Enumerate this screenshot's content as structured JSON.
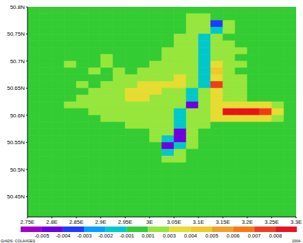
{
  "chart_data": {
    "type": "heatmap",
    "xlim": [
      2.75,
      3.3
    ],
    "xticks": [
      {
        "value": 2.75,
        "label": "2.75E"
      },
      {
        "value": 2.8,
        "label": "2.8E"
      },
      {
        "value": 2.85,
        "label": "2.85E"
      },
      {
        "value": 2.9,
        "label": "2.9E"
      },
      {
        "value": 2.95,
        "label": "2.95E"
      },
      {
        "value": 3,
        "label": "3E"
      },
      {
        "value": 3.05,
        "label": "3.05E"
      },
      {
        "value": 3.1,
        "label": "3.1E"
      },
      {
        "value": 3.15,
        "label": "3.15E"
      },
      {
        "value": 3.2,
        "label": "3.2E"
      },
      {
        "value": 3.25,
        "label": "3.25E"
      },
      {
        "value": 3.3,
        "label": "3.3E"
      }
    ],
    "ylim": [
      50.4125,
      50.8
    ],
    "yticks": [
      {
        "value": 50.45,
        "label": "50.45N"
      },
      {
        "value": 50.5,
        "label": "50.5N"
      },
      {
        "value": 50.55,
        "label": "50.55N"
      },
      {
        "value": 50.6,
        "label": "50.6N"
      },
      {
        "value": 50.65,
        "label": "50.65N"
      },
      {
        "value": 50.7,
        "label": "50.7N"
      },
      {
        "value": 50.75,
        "label": "50.75N"
      },
      {
        "value": 50.8,
        "label": "50.8N"
      }
    ],
    "x_edges": [
      2.75,
      2.775,
      2.8,
      2.825,
      2.85,
      2.875,
      2.9,
      2.925,
      2.95,
      2.975,
      3,
      3.025,
      3.05,
      3.075,
      3.1,
      3.125,
      3.15,
      3.175,
      3.2,
      3.225,
      3.25,
      3.275,
      3.3
    ],
    "y_edges": [
      50.8,
      50.7875,
      50.775,
      50.7625,
      50.75,
      50.7375,
      50.725,
      50.7125,
      50.7,
      50.6875,
      50.675,
      50.6625,
      50.65,
      50.6375,
      50.625,
      50.6125,
      50.6,
      50.5875,
      50.575,
      50.5625,
      50.55,
      50.5375,
      50.525,
      50.5125,
      50.5,
      50.4875,
      50.475,
      50.4625,
      50.45,
      50.4375,
      50.425,
      50.4125
    ],
    "z": [
      [
        0,
        0,
        0,
        0,
        0,
        0,
        0,
        0,
        0,
        0,
        0,
        0,
        0,
        0,
        0,
        0,
        0,
        0,
        0,
        0,
        0,
        0
      ],
      [
        0,
        0,
        0,
        0,
        0,
        0,
        0,
        0,
        0,
        0,
        0,
        0,
        0,
        0.002,
        0.002,
        0,
        0,
        0,
        0,
        0,
        0,
        0
      ],
      [
        0,
        0,
        0,
        0,
        0,
        0,
        0,
        0,
        0,
        0,
        0,
        0,
        0,
        0.002,
        0.002,
        -0.003,
        0.002,
        0,
        0,
        0,
        0,
        0
      ],
      [
        0,
        0,
        0,
        0,
        0,
        0,
        0,
        0,
        0,
        0,
        0,
        0,
        0,
        0.002,
        0.002,
        -0.0015,
        0.002,
        0,
        0,
        0,
        0,
        0
      ],
      [
        0,
        0,
        0,
        0,
        0,
        0,
        0,
        0,
        0,
        0,
        0,
        0,
        0.002,
        0.002,
        -0.0015,
        0.002,
        0,
        0,
        0,
        0,
        0,
        0
      ],
      [
        0,
        0,
        0,
        0,
        0,
        0,
        0,
        0,
        0,
        0,
        0,
        0,
        0.002,
        0.002,
        -0.0015,
        0.002,
        0.002,
        0,
        0,
        0,
        0,
        0
      ],
      [
        0,
        0,
        0,
        0,
        0,
        0,
        0,
        0,
        0,
        0,
        0,
        0.002,
        0.002,
        0.002,
        -0.0015,
        0.002,
        0.002,
        0.002,
        0,
        0,
        0,
        0
      ],
      [
        0,
        0,
        0,
        0,
        0,
        0,
        0.002,
        0,
        0,
        0,
        0,
        0.002,
        0.002,
        0.002,
        -0.0015,
        0.002,
        0.002,
        0,
        0,
        0,
        0,
        0
      ],
      [
        0,
        0,
        0,
        0.002,
        0,
        0,
        0.002,
        0,
        0,
        0,
        0.002,
        0.002,
        0.002,
        0.002,
        -0.0015,
        0.0035,
        0.002,
        0.002,
        0,
        0,
        0,
        0
      ],
      [
        0,
        0,
        0,
        0,
        0,
        0.002,
        0,
        0.002,
        0,
        0.002,
        0.002,
        0.002,
        0.002,
        0.002,
        -0.0015,
        0.0045,
        0.002,
        0,
        0,
        0,
        0,
        0
      ],
      [
        0,
        0,
        0,
        0,
        0,
        0,
        0,
        0.002,
        0.002,
        0.002,
        0.002,
        0.002,
        0.0035,
        0.002,
        -0.0015,
        0.0035,
        0.002,
        0.002,
        0,
        0,
        0,
        0
      ],
      [
        0,
        0,
        0,
        0,
        0.002,
        0,
        0.002,
        0.002,
        0.002,
        0.0035,
        0.0035,
        0.0035,
        0.0035,
        0.002,
        -0.0015,
        0.0075,
        0.002,
        0.002,
        0,
        0,
        0,
        0
      ],
      [
        0,
        0,
        0,
        0,
        0,
        0.002,
        0.002,
        0.002,
        0.0035,
        0.0035,
        0.0035,
        0.002,
        0.002,
        -0.0015,
        0.002,
        0.0035,
        0.002,
        0.002,
        0,
        0,
        0,
        0
      ],
      [
        0,
        0,
        0,
        0,
        0.002,
        0.002,
        0.002,
        0.002,
        0.0035,
        0.0035,
        0.002,
        0.002,
        0.002,
        -0.0015,
        0.002,
        0.0035,
        0.002,
        0.002,
        0,
        0,
        0,
        0
      ],
      [
        0,
        0,
        0,
        0.002,
        0.002,
        0.002,
        0.002,
        0.002,
        0.002,
        0.002,
        0.002,
        0.002,
        0.002,
        -0.0045,
        0.002,
        0.0035,
        0.0035,
        0.0035,
        0.0035,
        0.0035,
        0.002,
        0
      ],
      [
        0,
        0,
        0,
        0,
        0,
        0.002,
        0.002,
        0.002,
        0.002,
        0.002,
        0.002,
        0.002,
        -0.0015,
        0.002,
        0.002,
        0.0035,
        0.0085,
        0.0085,
        0.0085,
        0.0075,
        0.0035,
        0
      ],
      [
        0,
        0,
        0,
        0,
        0,
        0,
        0.002,
        0.002,
        0.002,
        0.002,
        0.002,
        0.002,
        -0.0015,
        0.002,
        0.002,
        0.0035,
        0.0035,
        0.0035,
        0.0035,
        0.0035,
        0.002,
        0
      ],
      [
        0,
        0,
        0,
        0,
        0,
        0,
        0,
        0,
        0.002,
        0.002,
        0.002,
        0.002,
        -0.0015,
        0.002,
        0.002,
        0,
        0,
        0,
        0,
        0,
        0,
        0
      ],
      [
        0,
        0,
        0,
        0,
        0,
        0,
        0,
        0,
        0,
        0,
        0.002,
        0.002,
        -0.004,
        0.002,
        0,
        0,
        0,
        0,
        0,
        0,
        0,
        0
      ],
      [
        0,
        0,
        0,
        0,
        0,
        0,
        0,
        0,
        0,
        0,
        0.002,
        -0.0015,
        -0.004,
        0.002,
        0,
        0,
        0,
        0,
        0,
        0,
        0,
        0
      ],
      [
        0,
        0,
        0,
        0,
        0,
        0,
        0,
        0,
        0,
        0,
        0,
        -0.0045,
        -0.0015,
        0.002,
        0,
        0,
        0,
        0,
        0,
        0,
        0,
        0
      ],
      [
        0,
        0,
        0,
        0,
        0,
        0,
        0,
        0,
        0,
        0,
        0,
        -0.0015,
        0.002,
        0,
        0,
        0,
        0,
        0,
        0,
        0,
        0,
        0
      ],
      [
        0,
        0,
        0,
        0,
        0,
        0,
        0,
        0,
        0,
        0,
        0,
        0.002,
        0.002,
        0,
        0,
        0,
        0,
        0,
        0,
        0,
        0,
        0
      ],
      [
        0,
        0,
        0,
        0,
        0,
        0,
        0,
        0,
        0,
        0,
        0,
        0,
        0,
        0,
        0,
        0,
        0,
        0,
        0,
        0,
        0,
        0
      ],
      [
        0,
        0,
        0,
        0,
        0,
        0,
        0,
        0,
        0,
        0,
        0,
        0,
        0,
        0,
        0,
        0,
        0,
        0,
        0,
        0,
        0,
        0
      ],
      [
        0,
        0,
        0,
        0,
        0,
        0,
        0,
        0,
        0,
        0,
        0,
        0,
        0,
        0,
        0,
        0,
        0,
        0,
        0,
        0,
        0,
        0
      ],
      [
        0,
        0,
        0,
        0,
        0,
        0,
        0,
        0,
        0,
        0,
        0,
        0,
        0,
        0,
        0,
        0,
        0,
        0,
        0,
        0,
        0,
        0
      ],
      [
        0,
        0,
        0,
        0,
        0,
        0,
        0,
        0,
        0,
        0,
        0,
        0,
        0,
        0,
        0,
        0,
        0,
        0,
        0,
        0,
        0,
        0
      ],
      [
        0,
        0,
        0,
        0,
        0,
        0,
        0,
        0,
        0,
        0,
        0,
        0,
        0,
        0,
        0,
        0,
        0,
        0,
        0,
        0,
        0,
        0
      ],
      [
        0,
        0,
        0,
        0,
        0,
        0,
        0,
        0,
        0,
        0,
        0,
        0,
        0,
        0,
        0,
        0,
        0,
        0,
        0,
        0,
        0,
        0
      ],
      [
        0,
        0,
        0,
        0,
        0,
        0,
        0,
        0,
        0,
        0,
        0,
        0,
        0,
        0,
        0,
        0,
        0,
        0,
        0,
        0,
        0,
        0
      ]
    ],
    "colorbar": {
      "ticks": [
        -0.005,
        -0.004,
        -0.003,
        -0.002,
        -0.001,
        0.001,
        0.003,
        0.004,
        0.005,
        0.006,
        0.007,
        0.008
      ],
      "colors": [
        "#a000c8",
        "#6e00dc",
        "#1e3cff",
        "#00a0ff",
        "#00c8c8",
        "#33cc33",
        "#96e63c",
        "#e6dc32",
        "#f0c828",
        "#f0a028",
        "#fa7814",
        "#f03c1e",
        "#e6141e"
      ]
    },
    "annotations": [
      "GrADS: COLA/IGES",
      "2004-"
    ]
  }
}
